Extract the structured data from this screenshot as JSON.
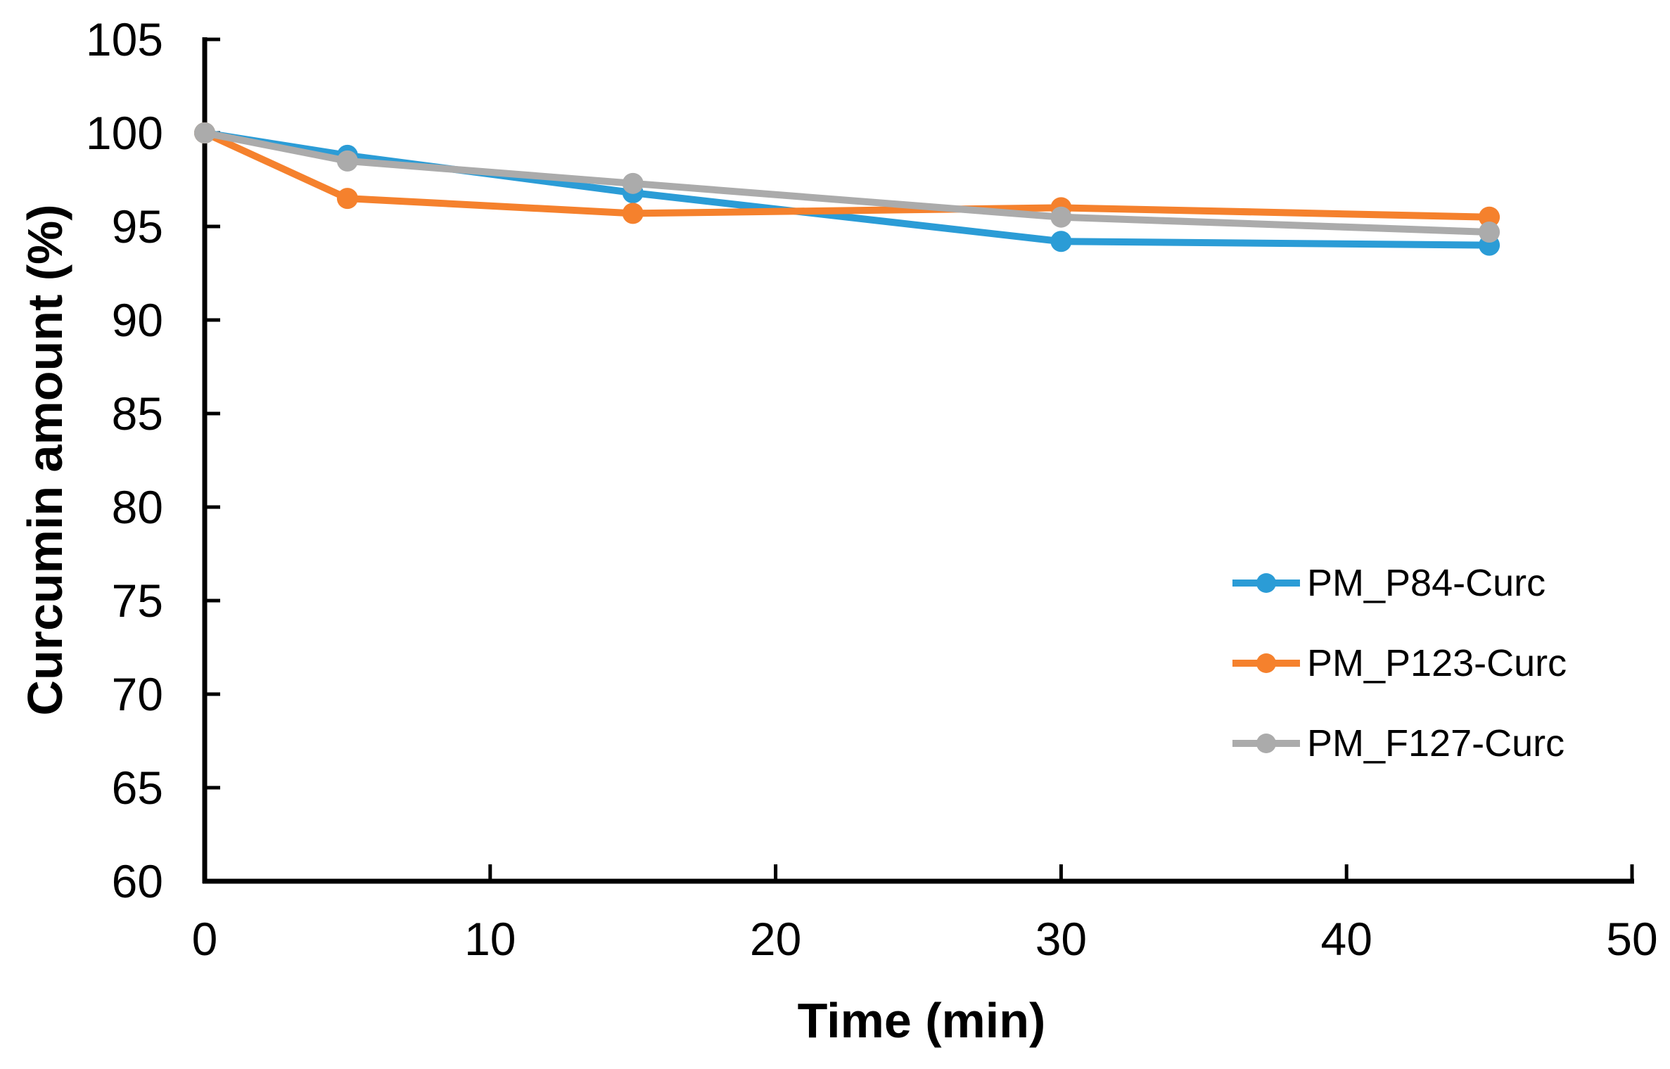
{
  "figure": {
    "background": "#ffffff",
    "axis_color": "#000000"
  },
  "chart_data": {
    "type": "line",
    "title": "",
    "xlabel": "Time (min)",
    "ylabel": "Curcumin amount (%)",
    "x": [
      0,
      5,
      15,
      30,
      45
    ],
    "series": [
      {
        "name": "PM_P84-Curc",
        "color": "#2B9CD6",
        "values": [
          100,
          98.8,
          96.8,
          94.2,
          94.0
        ]
      },
      {
        "name": "PM_P123-Curc",
        "color": "#F5812D",
        "values": [
          100,
          96.5,
          95.7,
          96.0,
          95.5
        ]
      },
      {
        "name": "PM_F127-Curc",
        "color": "#ABABAB",
        "values": [
          100,
          98.5,
          97.3,
          95.5,
          94.7
        ]
      }
    ],
    "xlim": [
      0,
      50
    ],
    "ylim": [
      60,
      105
    ],
    "xticks": [
      0,
      10,
      20,
      30,
      40,
      50
    ],
    "yticks": [
      60,
      65,
      70,
      75,
      80,
      85,
      90,
      95,
      100,
      105
    ],
    "grid": false,
    "marker": "circle",
    "legend_position": "right-middle",
    "tick_style": "inside"
  }
}
